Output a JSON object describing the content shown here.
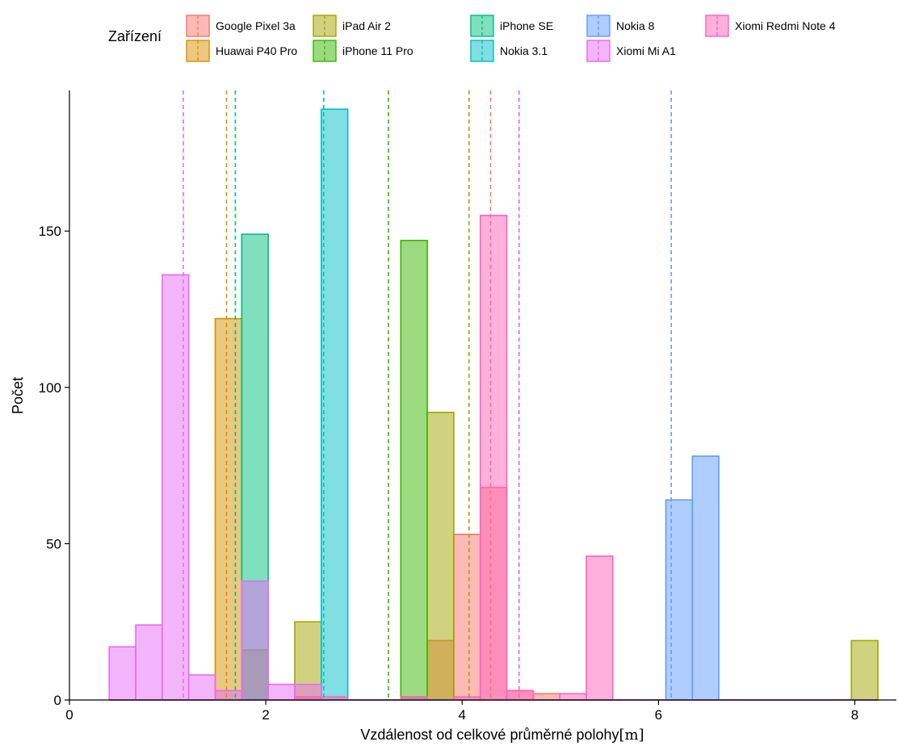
{
  "chart_data": {
    "type": "bar",
    "xlabel": "Vzdálenost od celkové průměrné polohy",
    "xlabel_unit": "[m]",
    "ylabel": "Počet",
    "xlim": [
      0,
      8.3
    ],
    "ylim": [
      0,
      195
    ],
    "x_ticks": [
      0,
      2,
      4,
      6,
      8
    ],
    "y_ticks": [
      0,
      50,
      100,
      150
    ],
    "bin_width": 0.27,
    "legend_title": "Zařízení",
    "legend_position": "top",
    "series": [
      {
        "name": "Google Pixel 3a",
        "color": "#F8766D",
        "mean": 4.29,
        "bins": [
          [
            2.43,
            1
          ],
          [
            3.78,
            19
          ],
          [
            4.05,
            53
          ],
          [
            4.32,
            68
          ],
          [
            4.59,
            3
          ],
          [
            4.86,
            2
          ]
        ]
      },
      {
        "name": "Huawai P40 Pro",
        "color": "#D89000",
        "mean": 1.6,
        "bins": [
          [
            1.62,
            122
          ]
        ]
      },
      {
        "name": "iPad Air 2",
        "color": "#A3A500",
        "mean": 4.07,
        "bins": [
          [
            1.89,
            16
          ],
          [
            2.43,
            25
          ],
          [
            3.51,
            1
          ],
          [
            3.78,
            92
          ],
          [
            8.1,
            19
          ]
        ]
      },
      {
        "name": "iPhone 11 Pro",
        "color": "#39B600",
        "mean": 3.25,
        "bins": [
          [
            3.51,
            147
          ]
        ]
      },
      {
        "name": "iPhone SE",
        "color": "#00BF7D",
        "mean": 1.69,
        "bins": [
          [
            1.89,
            149
          ]
        ]
      },
      {
        "name": "Nokia 3.1",
        "color": "#00BFC4",
        "mean": 2.59,
        "bins": [
          [
            2.7,
            189
          ]
        ]
      },
      {
        "name": "Nokia 8",
        "color": "#619CFF",
        "mean": 6.13,
        "bins": [
          [
            6.21,
            64
          ],
          [
            6.48,
            78
          ]
        ]
      },
      {
        "name": "Xiomi Mi A1",
        "color": "#E76BF3",
        "mean": 1.16,
        "bins": [
          [
            0.54,
            17
          ],
          [
            0.81,
            24
          ],
          [
            1.08,
            136
          ],
          [
            1.35,
            8
          ],
          [
            1.62,
            3
          ],
          [
            1.89,
            38
          ],
          [
            2.16,
            5
          ],
          [
            2.43,
            5
          ]
        ]
      },
      {
        "name": "Xiomi Redmi Note 4",
        "color": "#FF62BC",
        "mean": 4.58,
        "bins": [
          [
            2.43,
            1
          ],
          [
            2.7,
            1
          ],
          [
            3.51,
            1
          ],
          [
            4.05,
            1
          ],
          [
            4.32,
            155
          ],
          [
            4.59,
            3
          ],
          [
            5.13,
            2
          ],
          [
            5.4,
            46
          ]
        ]
      }
    ]
  }
}
